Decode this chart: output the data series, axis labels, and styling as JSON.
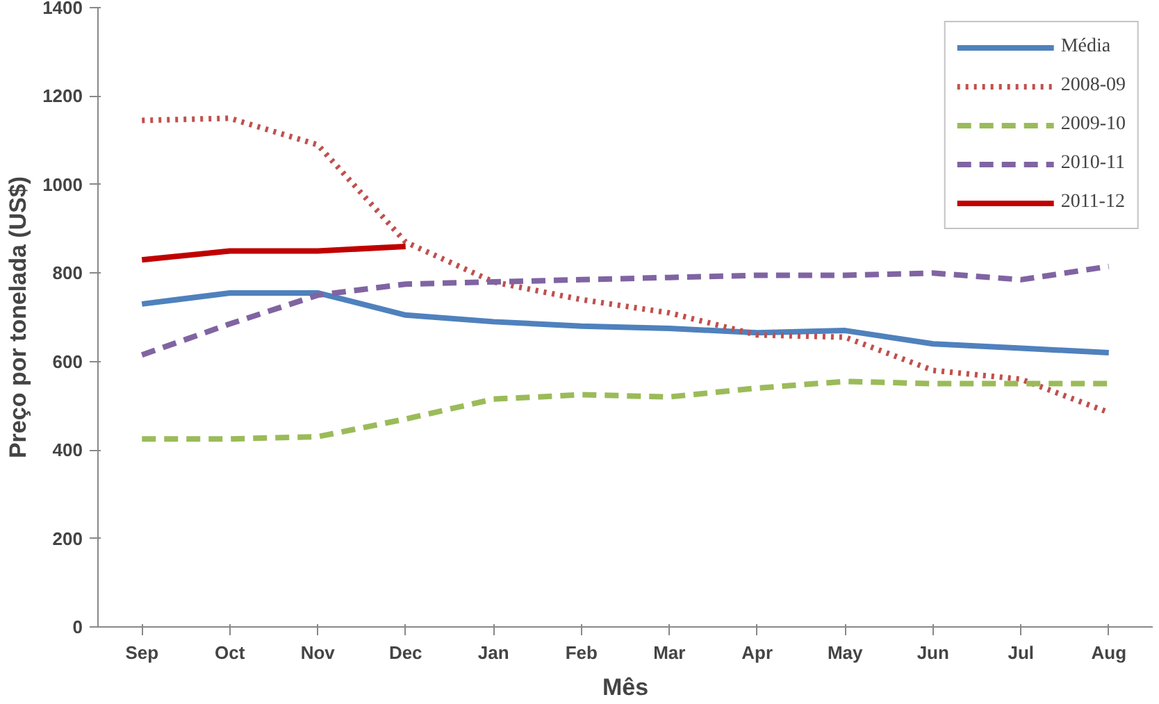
{
  "chart_data": {
    "type": "line",
    "xlabel": "Mês",
    "ylabel": "Preço por tonelada (US$)",
    "categories": [
      "Sep",
      "Oct",
      "Nov",
      "Dec",
      "Jan",
      "Feb",
      "Mar",
      "Apr",
      "May",
      "Jun",
      "Jul",
      "Aug"
    ],
    "series": [
      {
        "name": "Média",
        "color": "#4f81bd",
        "line_style": "solid",
        "values": [
          730,
          755,
          755,
          705,
          690,
          680,
          675,
          665,
          670,
          640,
          630,
          620
        ]
      },
      {
        "name": "2008-09",
        "color": "#c0504d",
        "line_style": "dotted",
        "values": [
          1145,
          1150,
          1090,
          870,
          780,
          740,
          710,
          660,
          655,
          580,
          560,
          485
        ]
      },
      {
        "name": "2009-10",
        "color": "#9bbb59",
        "line_style": "dashed",
        "values": [
          425,
          425,
          430,
          470,
          515,
          525,
          520,
          540,
          555,
          550,
          550,
          550
        ]
      },
      {
        "name": "2010-11",
        "color": "#8064a2",
        "line_style": "dashed",
        "values": [
          615,
          685,
          750,
          775,
          780,
          785,
          790,
          795,
          795,
          800,
          785,
          815
        ]
      },
      {
        "name": "2011-12",
        "color": "#c00000",
        "line_style": "solid",
        "values": [
          830,
          850,
          850,
          860,
          null,
          null,
          null,
          null,
          null,
          null,
          null,
          null
        ]
      }
    ],
    "ylim": [
      0,
      1400
    ],
    "yticks": [
      0,
      200,
      400,
      600,
      800,
      1000,
      1200,
      1400
    ],
    "grid": false,
    "legend": "top right",
    "marker": "none"
  }
}
